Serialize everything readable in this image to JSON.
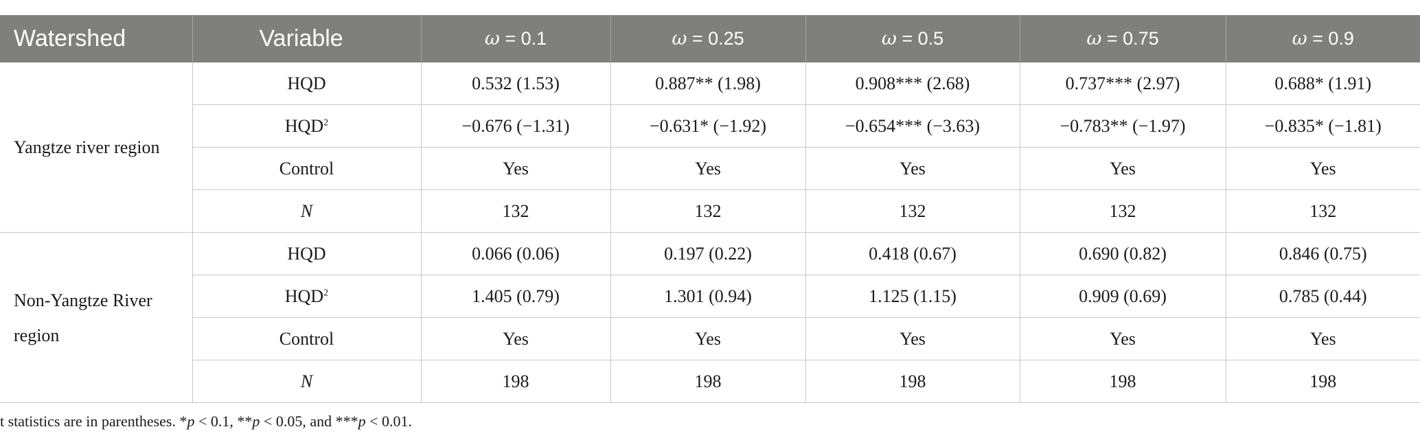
{
  "table": {
    "headers": {
      "watershed": "Watershed",
      "variable": "Variable",
      "omega_symbol": "ω",
      "omega_values": [
        "0.1",
        "0.25",
        "0.5",
        "0.75",
        "0.9"
      ]
    },
    "groups": [
      {
        "region": "Yangtze river region",
        "rows": [
          {
            "variable": "HQD",
            "superscript": "",
            "values": [
              "0.532 (1.53)",
              "0.887** (1.98)",
              "0.908*** (2.68)",
              "0.737*** (2.97)",
              "0.688* (1.91)"
            ]
          },
          {
            "variable": "HQD",
            "superscript": "2",
            "values": [
              "−0.676 (−1.31)",
              "−0.631* (−1.92)",
              "−0.654*** (−3.63)",
              "−0.783** (−1.97)",
              "−0.835* (−1.81)"
            ]
          },
          {
            "variable": "Control",
            "superscript": "",
            "values": [
              "Yes",
              "Yes",
              "Yes",
              "Yes",
              "Yes"
            ]
          },
          {
            "variable": "N",
            "superscript": "",
            "values": [
              "132",
              "132",
              "132",
              "132",
              "132"
            ]
          }
        ]
      },
      {
        "region_line1": "Non-Yangtze River",
        "region_line2": "region",
        "rows": [
          {
            "variable": "HQD",
            "superscript": "",
            "values": [
              "0.066 (0.06)",
              "0.197 (0.22)",
              "0.418 (0.67)",
              "0.690 (0.82)",
              "0.846 (0.75)"
            ]
          },
          {
            "variable": "HQD",
            "superscript": "2",
            "values": [
              "1.405 (0.79)",
              "1.301 (0.94)",
              "1.125 (1.15)",
              "0.909 (0.69)",
              "0.785 (0.44)"
            ]
          },
          {
            "variable": "Control",
            "superscript": "",
            "values": [
              "Yes",
              "Yes",
              "Yes",
              "Yes",
              "Yes"
            ]
          },
          {
            "variable": "N",
            "superscript": "",
            "values": [
              "198",
              "198",
              "198",
              "198",
              "198"
            ]
          }
        ]
      }
    ]
  },
  "footnote": {
    "part1": "t statistics are in parentheses. *",
    "p": "p",
    "part2": " < 0.1, **",
    "part3": " < 0.05, and ***",
    "part4": " < 0.01."
  }
}
